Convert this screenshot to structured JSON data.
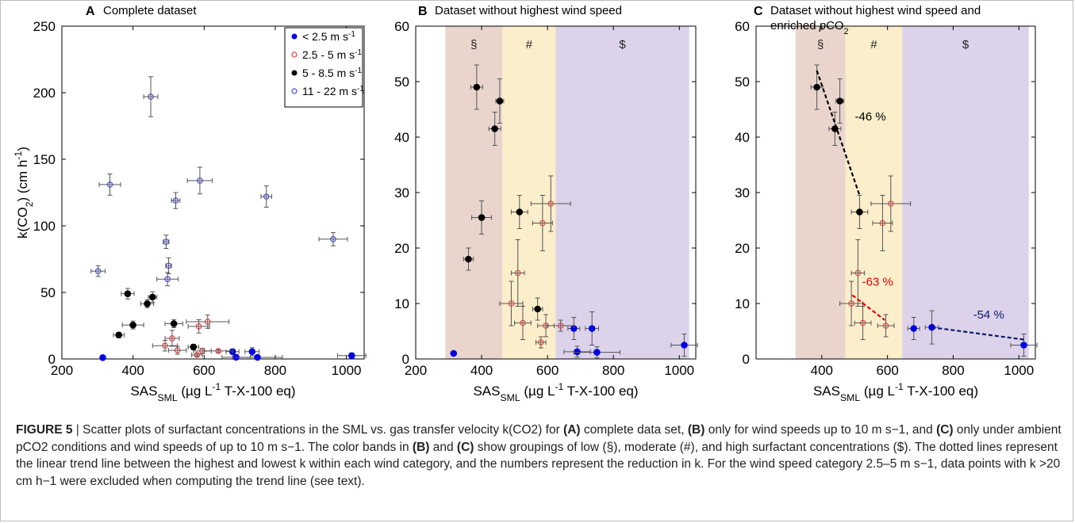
{
  "caption": {
    "figure_label": "FIGURE 5",
    "separator": "|",
    "t1": "Scatter plots of surfactant concentrations in the SML vs. gas transfer velocity k(CO2) for ",
    "a": "(A)",
    "t2": " complete data set, ",
    "b": "(B)",
    "t3": " only for wind speeds up to 10 m s−1, and ",
    "c": "(C)",
    "t4": " only under ambient pCO2 conditions and wind speeds of up to 10 m s−1. The color bands in ",
    "b2": "(B)",
    "t5": " and ",
    "c2": "(C)",
    "t6": " show groupings of low (§), moderate (#), and high surfactant concentrations ($). The dotted lines represent the linear trend line between the highest and lowest k within each wind category, and the numbers represent the reduction in k. For the wind speed category 2.5–5 m s−1, data points with k >20 cm h−1 were excluded when computing the trend line (see text)."
  },
  "colors": {
    "low_wind": "#0000e6",
    "mid_wind_open": "#e04040",
    "high_mid_wind": "#000000",
    "high_wind_open": "#4a4ad0",
    "errorbar": "#555555",
    "band_low": "#e9d5cc",
    "band_mid": "#fbeecb",
    "band_high": "#dcd2ea",
    "trend_black": "#000000",
    "trend_red": "#e00000",
    "trend_navy": "#0a1a6e"
  },
  "chart_data": [
    {
      "id": "A",
      "type": "scatter",
      "panel_letter": "A",
      "title": "Complete dataset",
      "ylabel": "k(CO2) (cm h-1)",
      "xlabel": "SAS_SML (µg L-1 T-X-100 eq)",
      "xlim": [
        200,
        1050
      ],
      "ylim": [
        0,
        250
      ],
      "xticks": [
        200,
        400,
        600,
        800,
        1000
      ],
      "yticks": [
        0,
        50,
        100,
        150,
        200,
        250
      ],
      "grid": false,
      "legend_position": "top-right",
      "legend": [
        {
          "label": "< 2.5 m s-1",
          "marker": "filled",
          "color_key": "low_wind"
        },
        {
          "label": "2.5 - 5 m s-1",
          "marker": "open",
          "color_key": "mid_wind_open"
        },
        {
          "label": "5 - 8.5 m s-1",
          "marker": "filled",
          "color_key": "high_mid_wind"
        },
        {
          "label": "11 - 22 m s-1",
          "marker": "open",
          "color_key": "high_wind_open"
        }
      ],
      "series": [
        {
          "name": "< 2.5 m s-1",
          "marker": "filled",
          "color_key": "low_wind",
          "points": [
            [
              315,
              1,
              0,
              0
            ],
            [
              680,
              5.5,
              18,
              2
            ],
            [
              735,
              5.5,
              20,
              3
            ],
            [
              690,
              1.3,
              40,
              1
            ],
            [
              750,
              1.2,
              70,
              1
            ],
            [
              1015,
              2.5,
              40,
              2
            ]
          ]
        },
        {
          "name": "2.5 - 5 m s-1",
          "marker": "open",
          "color_key": "mid_wind_open",
          "points": [
            [
              490,
              10,
              35,
              4
            ],
            [
              510,
              15.5,
              20,
              6
            ],
            [
              525,
              6.5,
              25,
              3
            ],
            [
              585,
              24.5,
              30,
              5
            ],
            [
              610,
              28,
              60,
              5
            ],
            [
              595,
              6,
              25,
              2
            ],
            [
              640,
              6,
              40,
              1
            ],
            [
              580,
              3,
              15,
              1
            ]
          ]
        },
        {
          "name": "5 - 8.5 m s-1",
          "marker": "filled",
          "color_key": "high_mid_wind",
          "points": [
            [
              385,
              49,
              18,
              4
            ],
            [
              455,
              46.5,
              12,
              4
            ],
            [
              440,
              41.5,
              18,
              3
            ],
            [
              400,
              25.5,
              30,
              3
            ],
            [
              360,
              18,
              15,
              2
            ],
            [
              515,
              26.5,
              25,
              3
            ],
            [
              570,
              9,
              15,
              2
            ]
          ]
        },
        {
          "name": "11 - 22 m s-1",
          "marker": "open",
          "color_key": "high_wind_open",
          "points": [
            [
              450,
              197,
              20,
              15
            ],
            [
              335,
              131,
              30,
              8
            ],
            [
              588,
              134,
              35,
              10
            ],
            [
              520,
              119,
              12,
              6
            ],
            [
              775,
              122,
              15,
              8
            ],
            [
              963,
              90,
              40,
              5
            ],
            [
              302,
              66,
              20,
              4
            ],
            [
              497,
              60,
              30,
              5
            ],
            [
              500,
              70,
              8,
              6
            ],
            [
              493,
              88,
              8,
              5
            ]
          ]
        }
      ]
    },
    {
      "id": "B",
      "type": "scatter",
      "panel_letter": "B",
      "title": "Dataset without highest wind speed",
      "xlabel": "SAS_SML (µg L-1 T-X-100 eq)",
      "xlim": [
        200,
        1050
      ],
      "ylim": [
        0,
        60
      ],
      "xticks": [
        200,
        400,
        600,
        800,
        1000
      ],
      "yticks": [
        0,
        10,
        20,
        30,
        40,
        50,
        60
      ],
      "grid": false,
      "bands": [
        {
          "label": "§",
          "x0": 290,
          "x1": 463,
          "color_key": "band_low"
        },
        {
          "label": "#",
          "x0": 463,
          "x1": 625,
          "color_key": "band_mid"
        },
        {
          "label": "$",
          "x0": 625,
          "x1": 1030,
          "color_key": "band_high"
        }
      ],
      "series": [
        {
          "name": "< 2.5 m s-1",
          "marker": "filled",
          "color_key": "low_wind",
          "points": [
            [
              315,
              1,
              0,
              0
            ],
            [
              680,
              5.5,
              18,
              2
            ],
            [
              735,
              5.5,
              20,
              3
            ],
            [
              690,
              1.3,
              40,
              1
            ],
            [
              750,
              1.2,
              70,
              1
            ],
            [
              1015,
              2.5,
              40,
              2
            ]
          ]
        },
        {
          "name": "2.5 - 5 m s-1",
          "marker": "open",
          "color_key": "mid_wind_open",
          "points": [
            [
              490,
              10,
              35,
              4
            ],
            [
              510,
              15.5,
              20,
              6
            ],
            [
              525,
              6.5,
              25,
              3
            ],
            [
              585,
              24.5,
              30,
              5
            ],
            [
              610,
              28,
              60,
              5
            ],
            [
              595,
              6,
              25,
              2
            ],
            [
              640,
              6,
              40,
              1
            ],
            [
              580,
              3,
              15,
              1
            ]
          ]
        },
        {
          "name": "5 - 8.5 m s-1",
          "marker": "filled",
          "color_key": "high_mid_wind",
          "points": [
            [
              385,
              49,
              18,
              4
            ],
            [
              455,
              46.5,
              12,
              4
            ],
            [
              440,
              41.5,
              18,
              3
            ],
            [
              400,
              25.5,
              30,
              3
            ],
            [
              360,
              18,
              15,
              2
            ],
            [
              515,
              26.5,
              25,
              3
            ],
            [
              570,
              9,
              15,
              2
            ]
          ]
        }
      ]
    },
    {
      "id": "C",
      "type": "scatter",
      "panel_letter": "C",
      "title": "Dataset without highest wind speed and",
      "title_line2_prefix": "enriched ",
      "title_line2_italic": "p",
      "title_line2_suffix": "CO2",
      "xlabel": "SAS_SML (µg L-1 T-X-100 eq)",
      "xlim": [
        200,
        1050
      ],
      "ylim": [
        0,
        60
      ],
      "xticks": [
        400,
        600,
        800,
        1000
      ],
      "yticks": [
        0,
        10,
        20,
        30,
        40,
        50,
        60
      ],
      "grid": false,
      "bands": [
        {
          "label": "§",
          "x0": 320,
          "x1": 472,
          "color_key": "band_low"
        },
        {
          "label": "#",
          "x0": 472,
          "x1": 645,
          "color_key": "band_mid"
        },
        {
          "label": "$",
          "x0": 645,
          "x1": 1030,
          "color_key": "band_high"
        }
      ],
      "series": [
        {
          "name": "< 2.5 m s-1",
          "marker": "filled",
          "color_key": "low_wind",
          "points": [
            [
              680,
              5.5,
              18,
              2
            ],
            [
              735,
              5.7,
              20,
              3
            ],
            [
              1015,
              2.5,
              40,
              2
            ]
          ]
        },
        {
          "name": "2.5 - 5 m s-1",
          "marker": "open",
          "color_key": "mid_wind_open",
          "points": [
            [
              490,
              10,
              35,
              4
            ],
            [
              510,
              15.5,
              20,
              6
            ],
            [
              525,
              6.5,
              25,
              3
            ],
            [
              585,
              24.5,
              30,
              5
            ],
            [
              610,
              28,
              60,
              5
            ],
            [
              595,
              6,
              25,
              2
            ]
          ]
        },
        {
          "name": "5 - 8.5 m s-1",
          "marker": "filled",
          "color_key": "high_mid_wind",
          "points": [
            [
              385,
              49,
              18,
              4
            ],
            [
              455,
              46.5,
              12,
              4
            ],
            [
              440,
              41.5,
              18,
              3
            ],
            [
              515,
              26.5,
              25,
              3
            ]
          ]
        }
      ],
      "trendlines": [
        {
          "from": [
            385,
            52
          ],
          "to": [
            515,
            29.5
          ],
          "label": "-46 %",
          "color_key": "trend_black",
          "label_at": [
            548,
            43
          ]
        },
        {
          "from": [
            493,
            11.5
          ],
          "to": [
            592,
            7
          ],
          "label": "-63 %",
          "color_key": "trend_red",
          "label_at": [
            570,
            13.2
          ]
        },
        {
          "from": [
            735,
            5.7
          ],
          "to": [
            1015,
            3.5
          ],
          "label": "-54 %",
          "color_key": "trend_navy",
          "label_at": [
            908,
            7.3
          ]
        }
      ]
    }
  ]
}
